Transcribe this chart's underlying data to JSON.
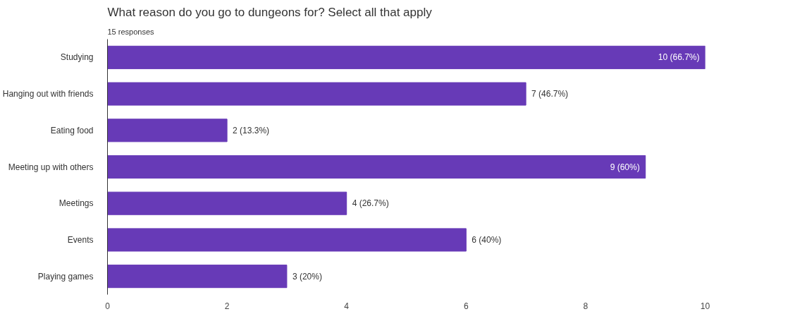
{
  "chart_data": {
    "type": "bar",
    "orientation": "horizontal",
    "title": "What reason do you go to dungeons for? Select all that apply",
    "subtitle": "15 responses",
    "categories": [
      "Studying",
      "Hanging out with friends",
      "Eating food",
      "Meeting up with others",
      "Meetings",
      "Events",
      "Playing games"
    ],
    "values": [
      10,
      7,
      2,
      9,
      4,
      6,
      3
    ],
    "value_labels": [
      "10 (66.7%)",
      "7 (46.7%)",
      "2 (13.3%)",
      "9 (60%)",
      "4 (26.7%)",
      "6 (40%)",
      "3 (20%)"
    ],
    "color": "#673ab7",
    "xlim": [
      0,
      10
    ],
    "xticks": [
      0,
      2,
      4,
      6,
      8,
      10
    ],
    "grid": false
  }
}
